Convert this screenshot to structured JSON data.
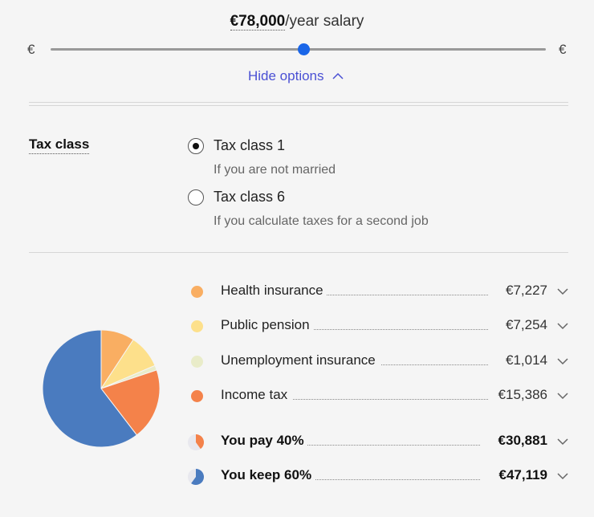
{
  "salary": {
    "amount": "€78,000",
    "suffix": "/year salary",
    "min_label": "€",
    "max_label": "€",
    "slider_position": 0.51
  },
  "options_toggle": {
    "label": "Hide options",
    "icon": "chevron-up-icon"
  },
  "tax_class": {
    "heading": "Tax class",
    "options": [
      {
        "title": "Tax class 1",
        "subtitle": "If you are not married",
        "selected": true
      },
      {
        "title": "Tax class 6",
        "subtitle": "If you calculate taxes for a second job",
        "selected": false
      }
    ]
  },
  "breakdown": {
    "items": [
      {
        "label": "Health insurance",
        "value": "€7,227",
        "amount": 7227,
        "color": "#f9ae62"
      },
      {
        "label": "Public pension",
        "value": "€7,254",
        "amount": 7254,
        "color": "#fde08b"
      },
      {
        "label": "Unemployment insurance",
        "value": "€1,014",
        "amount": 1014,
        "color": "#e9ecc9"
      },
      {
        "label": "Income tax",
        "value": "€15,386",
        "amount": 15386,
        "color": "#f4824a"
      }
    ],
    "totals": [
      {
        "label": "You pay 40%",
        "value": "€30,881",
        "fraction": 0.4,
        "color": "#f4824a"
      },
      {
        "label": "You keep 60%",
        "value": "€47,119",
        "fraction": 0.6,
        "color": "#4a7bbf"
      }
    ],
    "keep_amount": 47119,
    "keep_color": "#4a7bbf"
  }
}
